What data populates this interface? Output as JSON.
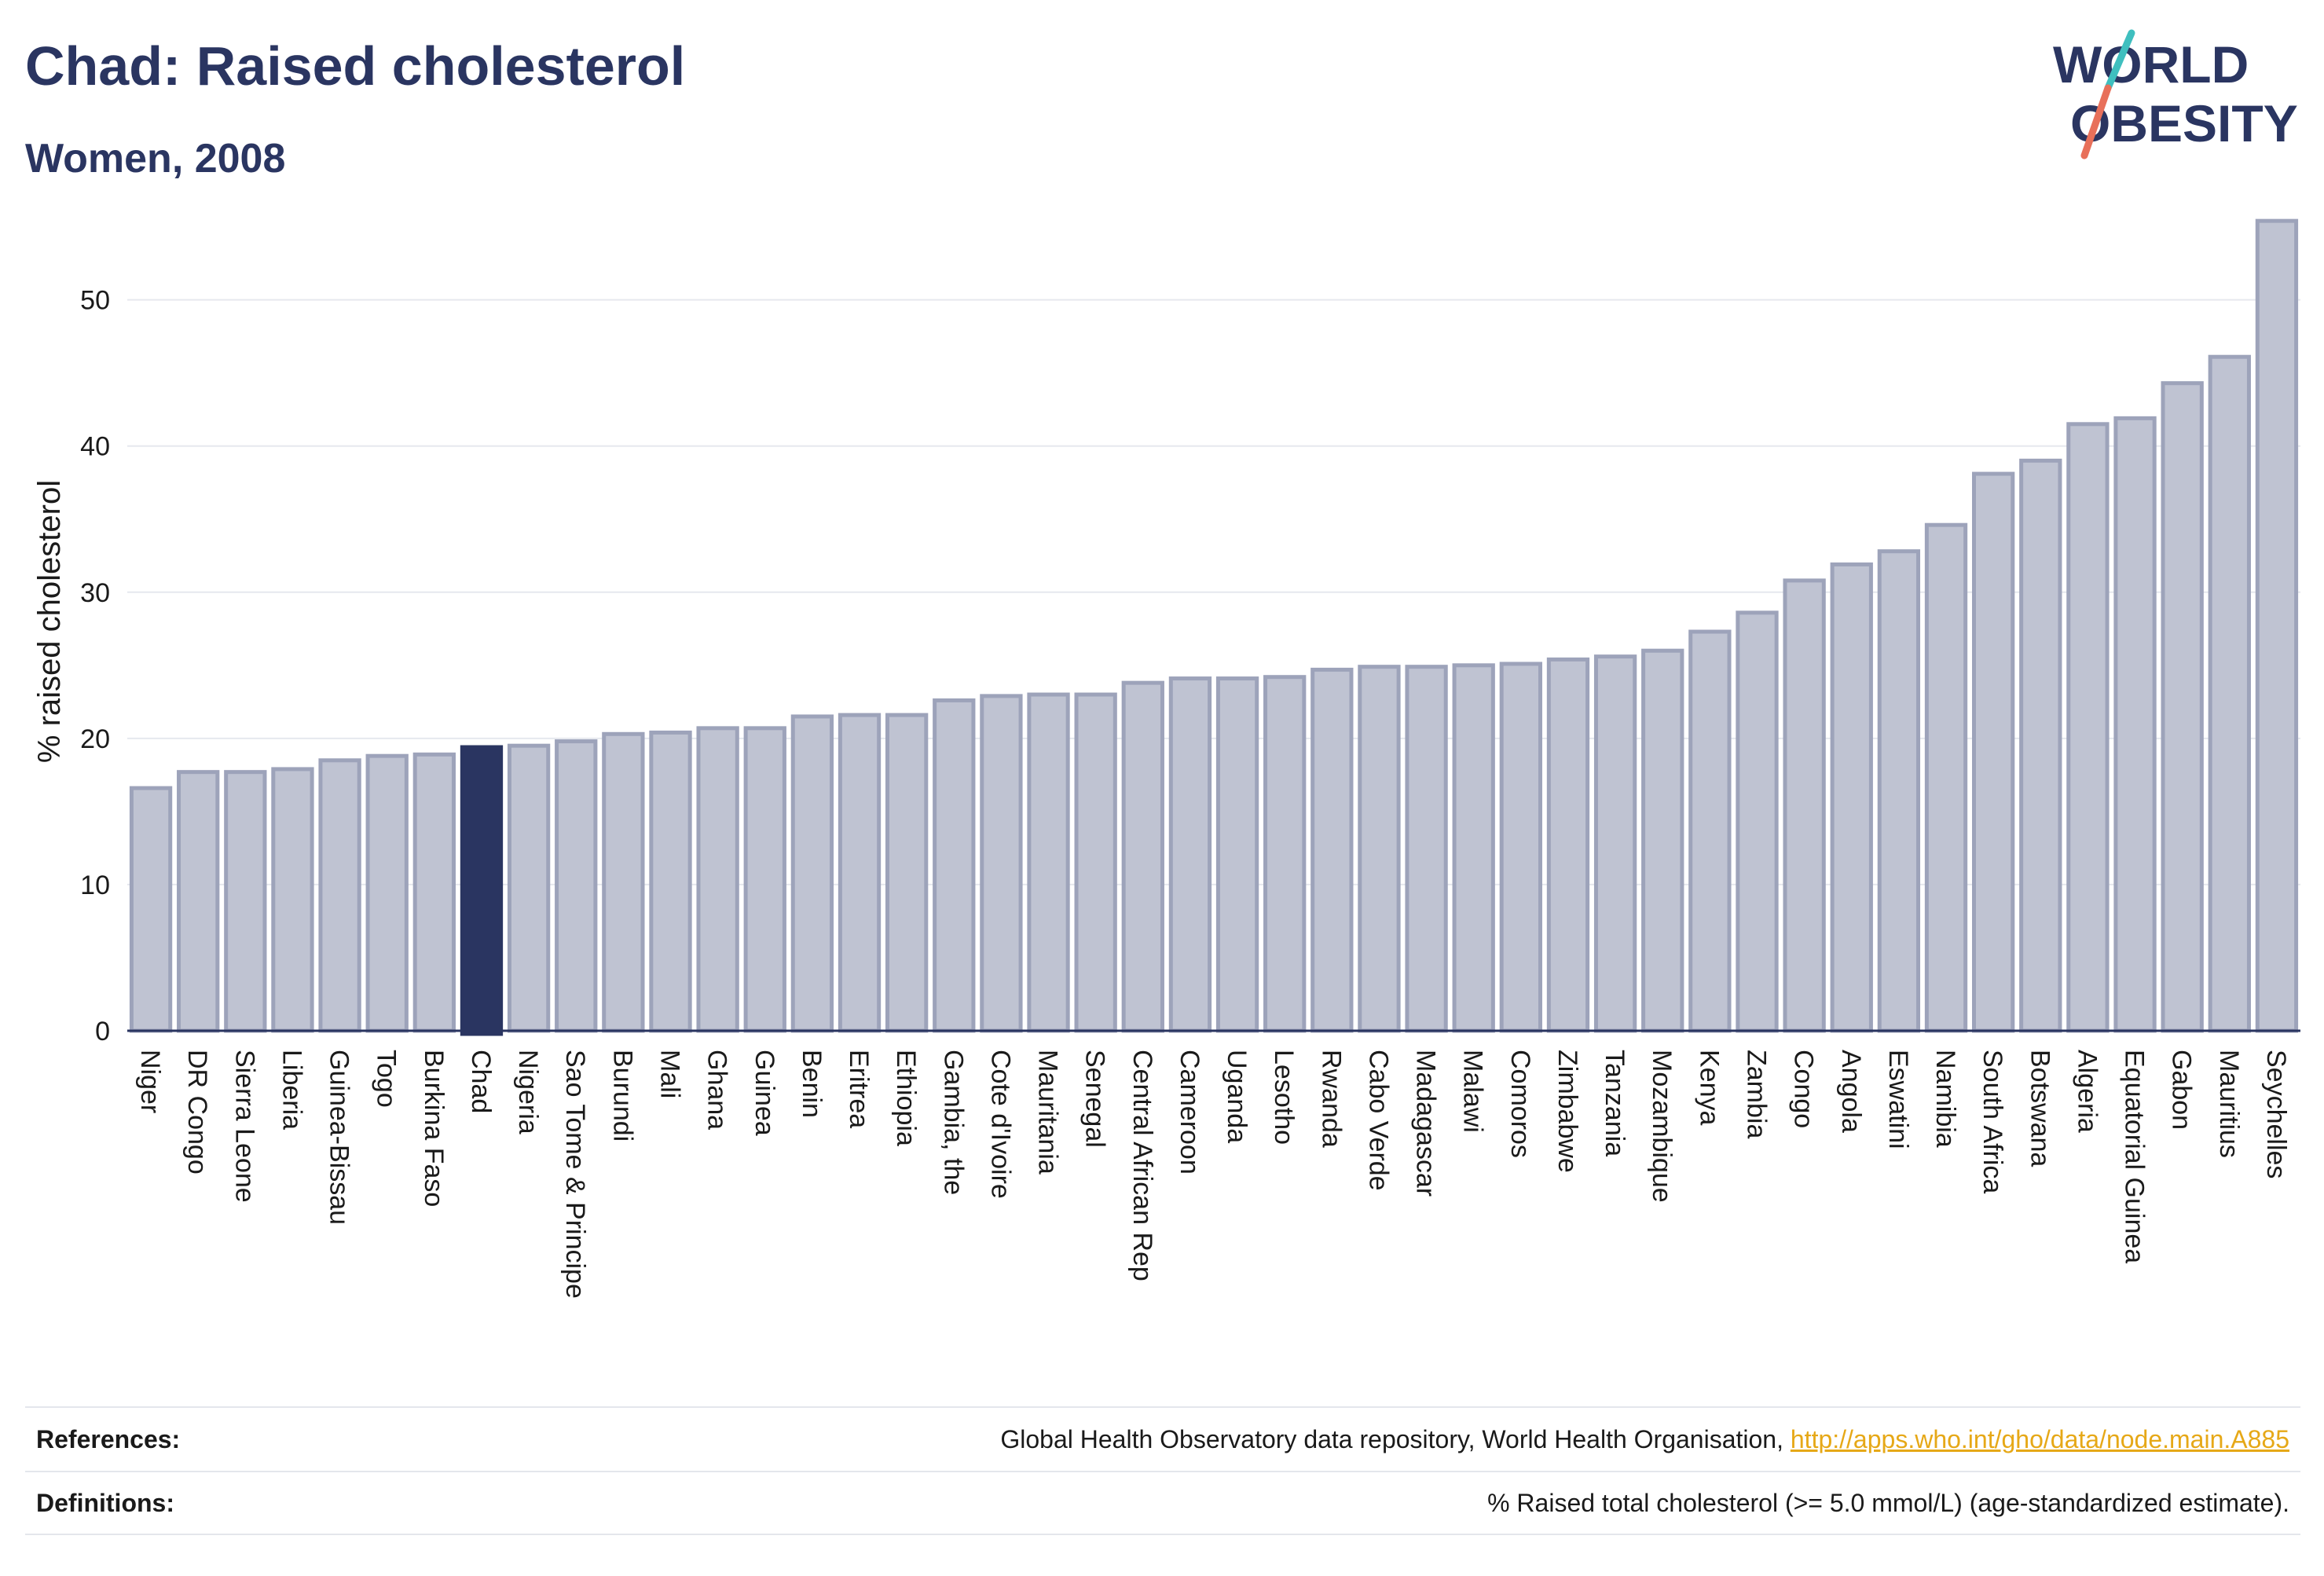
{
  "header": {
    "title": "Chad: Raised cholesterol",
    "subtitle": "Women, 2008"
  },
  "logo": {
    "line1": "WORLD",
    "line2": "OBESITY"
  },
  "colors": {
    "bar_fill": "#bfc3d2",
    "bar_stroke": "#9da3ba",
    "highlight_fill": "#2a3561",
    "title": "#2a3561",
    "link": "#e6a817",
    "logo_teal": "#3fbfbf",
    "logo_coral": "#e8705a"
  },
  "chart_data": {
    "type": "bar",
    "ylabel": "% raised cholesterol",
    "xlabel": "",
    "ylim": [
      0,
      56
    ],
    "yticks": [
      0,
      10,
      20,
      30,
      40,
      50
    ],
    "grid": true,
    "highlight": "Chad",
    "categories": [
      "Niger",
      "DR Congo",
      "Sierra Leone",
      "Liberia",
      "Guinea-Bissau",
      "Togo",
      "Burkina Faso",
      "Chad",
      "Nigeria",
      "Sao Tome & Principe",
      "Burundi",
      "Mali",
      "Ghana",
      "Guinea",
      "Benin",
      "Eritrea",
      "Ethiopia",
      "Gambia, the",
      "Cote d'Ivoire",
      "Mauritania",
      "Senegal",
      "Central African Rep",
      "Cameroon",
      "Uganda",
      "Lesotho",
      "Rwanda",
      "Cabo Verde",
      "Madagascar",
      "Malawi",
      "Comoros",
      "Zimbabwe",
      "Tanzania",
      "Mozambique",
      "Kenya",
      "Zambia",
      "Congo",
      "Angola",
      "Eswatini",
      "Namibia",
      "South Africa",
      "Botswana",
      "Algeria",
      "Equatorial Guinea",
      "Gabon",
      "Mauritius",
      "Seychelles"
    ],
    "values": [
      16.6,
      17.7,
      17.7,
      17.9,
      18.5,
      18.8,
      18.9,
      19.4,
      19.5,
      19.8,
      20.3,
      20.4,
      20.7,
      20.7,
      21.5,
      21.6,
      21.6,
      22.6,
      22.9,
      23.0,
      23.0,
      23.8,
      24.1,
      24.1,
      24.2,
      24.7,
      24.9,
      24.9,
      25.0,
      25.1,
      25.4,
      25.6,
      26.0,
      27.3,
      28.6,
      30.8,
      31.9,
      32.8,
      34.6,
      38.1,
      39.0,
      41.5,
      41.9,
      44.3,
      46.1,
      55.4
    ]
  },
  "references": {
    "label": "References:",
    "text": "Global Health Observatory data repository, World Health Organisation, ",
    "link": "http://apps.who.int/gho/data/node.main.A885"
  },
  "definitions": {
    "label": "Definitions:",
    "text": "% Raised total cholesterol (>= 5.0 mmol/L) (age-standardized estimate)."
  }
}
